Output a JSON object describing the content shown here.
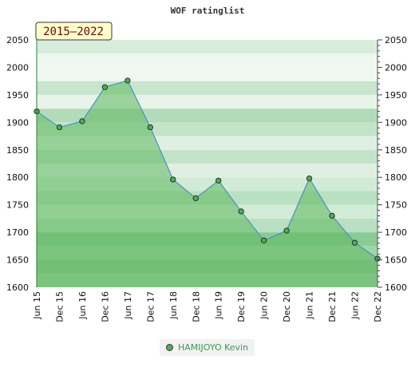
{
  "chart_data": {
    "type": "area",
    "title": "WOF ratinglist",
    "period_badge": "2015–2022",
    "categories": [
      "Jun 15",
      "Dec 15",
      "Jun 16",
      "Dec 16",
      "Jun 17",
      "Dec 17",
      "Jun 18",
      "Dec 18",
      "Jun 19",
      "Dec 19",
      "Jun 20",
      "Dec 20",
      "Jun 21",
      "Dec 21",
      "Jun 22",
      "Dec 22"
    ],
    "series": [
      {
        "name": "HAMIJOYO Kevin",
        "values": [
          1920,
          1891,
          1902,
          1964,
          1976,
          1891,
          1796,
          1762,
          1794,
          1738,
          1685,
          1703,
          1798,
          1730,
          1681,
          1652
        ]
      }
    ],
    "ylim": [
      1600,
      2050
    ],
    "yticks": [
      1600,
      1650,
      1700,
      1750,
      1800,
      1850,
      1900,
      1950,
      2000,
      2050
    ],
    "legend_position": "bottom",
    "colors": {
      "line": "#4a90c8",
      "marker": "#4caf50",
      "fill": "#5cb85c",
      "badge_bg": "#ffffcc"
    }
  }
}
